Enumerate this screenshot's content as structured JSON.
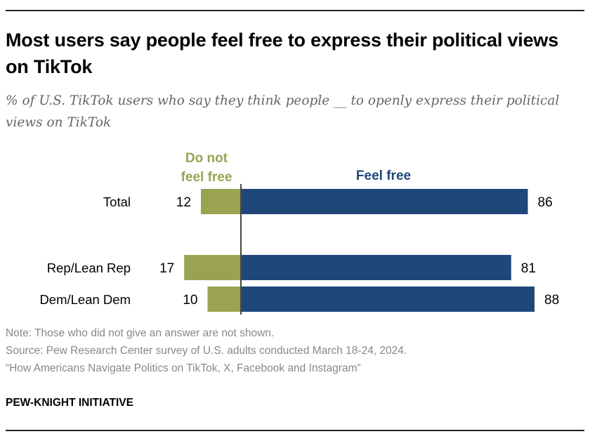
{
  "title": "Most users say people feel free to express their political views on TikTok",
  "subtitle": "% of U.S. TikTok users who say they think people __ to openly express their political views on TikTok",
  "colors": {
    "not_free": "#99a351",
    "free": "#20477a",
    "axis": "#4a4a3a"
  },
  "chart_data": {
    "type": "bar",
    "orientation": "horizontal-diverging",
    "categories": [
      "Total",
      "Rep/Lean Rep",
      "Dem/Lean Dem"
    ],
    "series": [
      {
        "name": "Do not feel free",
        "values": [
          12,
          17,
          10
        ]
      },
      {
        "name": "Feel free",
        "values": [
          86,
          81,
          88
        ]
      }
    ],
    "legend_labels": {
      "not_free": [
        "Do not",
        "feel free"
      ],
      "free": "Feel free"
    }
  },
  "notes": {
    "note": "Note: Those who did not give an answer are not shown.",
    "source": "Source: Pew Research Center survey of U.S. adults conducted March 18-24, 2024.",
    "report": "“How Americans Navigate Politics on TikTok, X, Facebook and Instagram”"
  },
  "brand": "PEW-KNIGHT INITIATIVE"
}
